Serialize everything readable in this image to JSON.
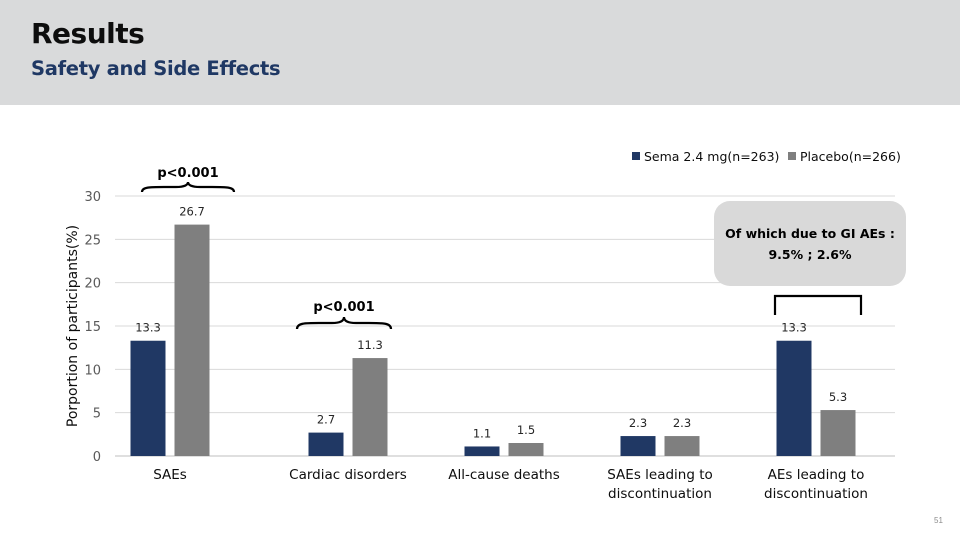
{
  "slide": {
    "title": "Results",
    "subtitle": "Safety and Side Effects",
    "page_number": "51"
  },
  "chart_data": {
    "type": "bar",
    "categories": [
      "SAEs",
      "Cardiac disorders",
      "All-cause deaths",
      "SAEs leading to discontinuation",
      "AEs leading to discontinuation"
    ],
    "category_lines": [
      [
        "SAEs"
      ],
      [
        "Cardiac disorders"
      ],
      [
        "All-cause deaths"
      ],
      [
        "SAEs leading to",
        "discontinuation"
      ],
      [
        "AEs leading to",
        "discontinuation"
      ]
    ],
    "series": [
      {
        "name": "Sema 2.4 mg(n=263)",
        "color": "#203864",
        "values": [
          13.3,
          2.7,
          1.1,
          2.3,
          13.3
        ],
        "labels": [
          "13.3",
          "2.7",
          "1.1",
          "2.3",
          "13.3"
        ]
      },
      {
        "name": "Placebo(n=266)",
        "color": "#7f7f7f",
        "values": [
          26.7,
          11.3,
          1.5,
          2.3,
          5.3
        ],
        "labels": [
          "26.7",
          "11.3",
          "1.5",
          "2.3",
          "5.3"
        ]
      }
    ],
    "ylabel": "Porportion of participants(%)",
    "ylim": [
      0,
      30
    ],
    "yticks": [
      0,
      5,
      10,
      15,
      20,
      25,
      30
    ],
    "grid": true,
    "legend_position": "top-right",
    "annotations": [
      {
        "text": "p<0.001",
        "category_index": 0,
        "shape": "curly-brace"
      },
      {
        "text": "p<0.001",
        "category_index": 1,
        "shape": "curly-brace"
      },
      {
        "category_index": 4,
        "shape": "square-bracket"
      }
    ],
    "callout": {
      "lines": [
        "Of which due to GI AEs :",
        "9.5% ; 2.6%"
      ],
      "background": "#d9d9d9"
    }
  }
}
